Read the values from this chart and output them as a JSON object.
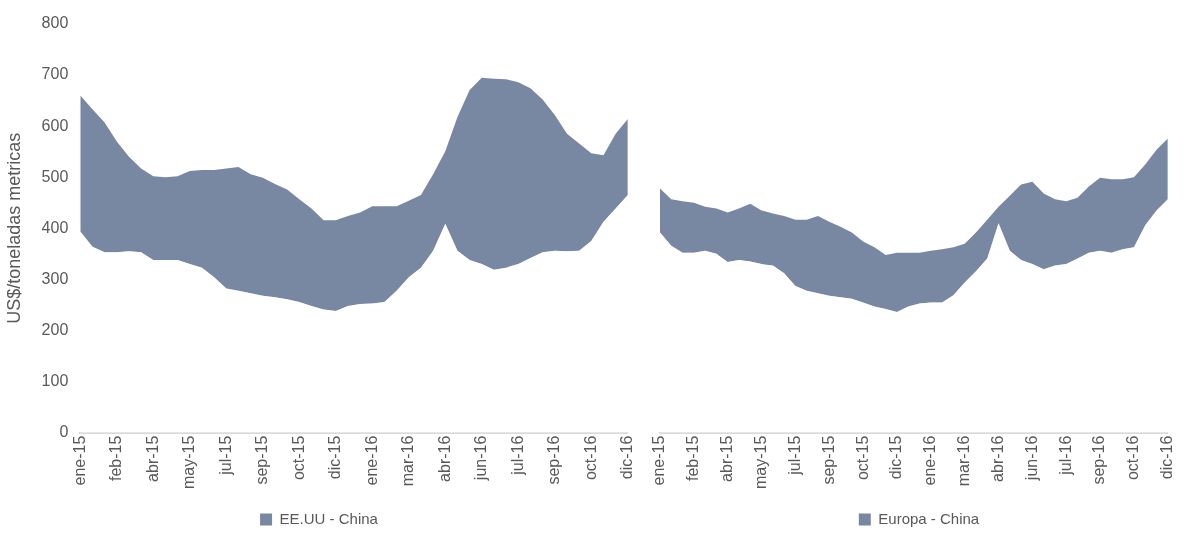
{
  "chart_data": [
    {
      "type": "area",
      "stacked": true,
      "ylabel": "US$/toneladas metricas",
      "categories": [
        "ene-15",
        null,
        null,
        "feb-15",
        null,
        null,
        "abr-15",
        null,
        null,
        "may-15",
        null,
        null,
        "jul-15",
        null,
        null,
        "sep-15",
        null,
        null,
        "oct-15",
        null,
        null,
        "dic-15",
        null,
        null,
        "ene-16",
        null,
        null,
        "mar-16",
        null,
        null,
        "abr-16",
        null,
        null,
        "jun-16",
        null,
        null,
        "jul-16",
        null,
        null,
        "sep-16",
        null,
        null,
        "oct-16",
        null,
        null,
        "dic-16"
      ],
      "series": [
        {
          "color": "#ffffff",
          "values": [
            394,
            364,
            353,
            353,
            355,
            353,
            338,
            338,
            338,
            330,
            323,
            304,
            282,
            278,
            273,
            268,
            265,
            261,
            256,
            248,
            241,
            238,
            248,
            252,
            253,
            256,
            278,
            304,
            323,
            356,
            409,
            356,
            338,
            330,
            319,
            323,
            330,
            342,
            353,
            356,
            355,
            356,
            375,
            413,
            439,
            465
          ]
        },
        {
          "name": "EE.UU - China",
          "color": "#203864",
          "values": [
            266,
            269,
            254,
            217,
            185,
            164,
            164,
            162,
            164,
            182,
            191,
            210,
            235,
            242,
            233,
            231,
            222,
            215,
            201,
            191,
            175,
            178,
            176,
            179,
            190,
            187,
            165,
            150,
            142,
            150,
            142,
            262,
            333,
            365,
            374,
            369,
            356,
            332,
            299,
            266,
            230,
            210,
            172,
            130,
            146,
            149
          ]
        }
      ],
      "ylim": [
        0,
        800
      ],
      "yticks": [
        0,
        100,
        200,
        300,
        400,
        500,
        600,
        700,
        800
      ],
      "legend": "bottom"
    },
    {
      "type": "area",
      "stacked": true,
      "categories": [
        "ene-15",
        null,
        null,
        "feb-15",
        null,
        null,
        "abr-15",
        null,
        null,
        "may-15",
        null,
        null,
        "jul-15",
        null,
        null,
        "sep-15",
        null,
        null,
        "oct-15",
        null,
        null,
        "dic-15",
        null,
        null,
        "ene-16",
        null,
        null,
        "mar-16",
        null,
        null,
        "abr-16",
        null,
        null,
        "jun-16",
        null,
        null,
        "jul-16",
        null,
        null,
        "sep-16",
        null,
        null,
        "oct-16",
        null,
        null,
        "dic-16"
      ],
      "series": [
        {
          "color": "#ffffff",
          "values": [
            392,
            366,
            352,
            352,
            356,
            350,
            334,
            338,
            335,
            330,
            327,
            312,
            287,
            278,
            273,
            268,
            265,
            262,
            255,
            247,
            242,
            236,
            247,
            253,
            255,
            255,
            269,
            294,
            316,
            341,
            410,
            356,
            338,
            330,
            320,
            327,
            330,
            341,
            352,
            356,
            352,
            359,
            363,
            406,
            435,
            457
          ]
        },
        {
          "name": "Europa - China",
          "color": "#203864",
          "values": [
            86,
            91,
            101,
            98,
            86,
            89,
            97,
            101,
            113,
            105,
            102,
            112,
            130,
            139,
            151,
            145,
            138,
            130,
            119,
            116,
            106,
            116,
            105,
            99,
            101,
            104,
            94,
            76,
            76,
            76,
            32,
            108,
            148,
            161,
            148,
            130,
            123,
            119,
            130,
            143,
            144,
            137,
            137,
            119,
            119,
            119
          ]
        }
      ],
      "ylim": [
        0,
        800
      ],
      "yticks": [
        0,
        100,
        200,
        300,
        400,
        500,
        600,
        700,
        800
      ],
      "tick_labels": "x",
      "legend": "bottom"
    }
  ]
}
